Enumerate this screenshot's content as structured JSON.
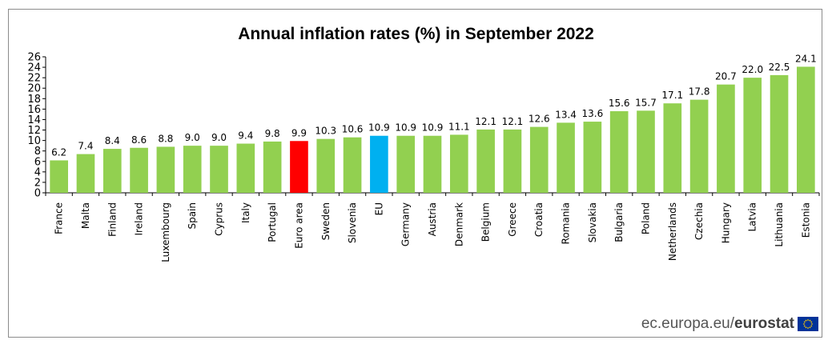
{
  "chart_data": {
    "type": "bar",
    "title": "Annual inflation rates (%) in September 2022",
    "xlabel": "",
    "ylabel": "",
    "ylim": [
      0,
      26
    ],
    "yticks": [
      "0",
      "2",
      "4",
      "6",
      "8",
      "10",
      "12",
      "14",
      "16",
      "18",
      "20",
      "22",
      "24",
      "26"
    ],
    "grid": false,
    "categories": [
      "France",
      "Malta",
      "Finland",
      "Ireland",
      "Luxembourg",
      "Spain",
      "Cyprus",
      "Italy",
      "Portugal",
      "Euro area",
      "Sweden",
      "Slovenia",
      "EU",
      "Germany",
      "Austria",
      "Denmark",
      "Belgium",
      "Greece",
      "Croatia",
      "Romania",
      "Slovakia",
      "Bulgaria",
      "Poland",
      "Netherlands",
      "Czechia",
      "Hungary",
      "Latvia",
      "Lithuania",
      "Estonia"
    ],
    "values": [
      6.2,
      7.4,
      8.4,
      8.6,
      8.8,
      9.0,
      9.0,
      9.4,
      9.8,
      9.9,
      10.3,
      10.6,
      10.9,
      10.9,
      10.9,
      11.1,
      12.1,
      12.1,
      12.6,
      13.4,
      13.6,
      15.6,
      15.7,
      17.1,
      17.8,
      20.7,
      22.0,
      22.5,
      24.1
    ],
    "value_labels": [
      "6.2",
      "7.4",
      "8.4",
      "8.6",
      "8.8",
      "9.0",
      "9.0",
      "9.4",
      "9.8",
      "9.9",
      "10.3",
      "10.6",
      "10.9",
      "10.9",
      "10.9",
      "11.1",
      "12.1",
      "12.1",
      "12.6",
      "13.4",
      "13.6",
      "15.6",
      "15.7",
      "17.1",
      "17.8",
      "20.7",
      "22.0",
      "22.5",
      "24.1"
    ],
    "colors": {
      "default": "#92d050",
      "Euro area": "#ff0000",
      "EU": "#00b0f0"
    }
  },
  "footer": {
    "source_prefix": "ec.europa.eu/",
    "source_brand": "eurostat"
  }
}
